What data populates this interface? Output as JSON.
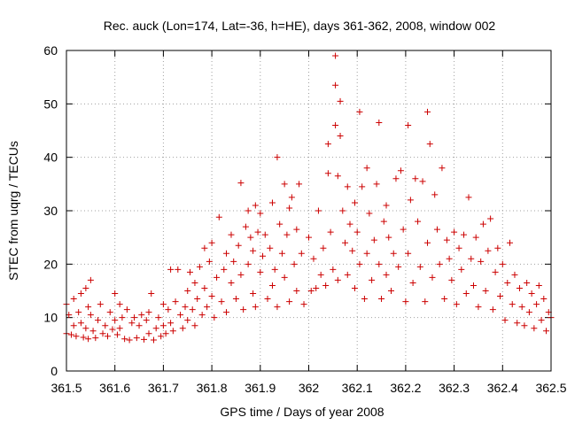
{
  "chart_data": {
    "type": "scatter",
    "title": "Rec. auck (Lon=174, Lat=-36, h=HE), days 361-362, 2008, window 002",
    "xlabel": "GPS time / Days of year 2008",
    "ylabel": "STEC from uqrg / TECUs",
    "xlim": [
      361.5,
      362.5
    ],
    "ylim": [
      0,
      60
    ],
    "xticks": [
      361.5,
      361.6,
      361.7,
      361.8,
      361.9,
      362,
      362.1,
      362.2,
      362.3,
      362.4,
      362.5
    ],
    "xtick_labels": [
      "361.5",
      "361.6",
      "361.7",
      "361.8",
      "361.9",
      "362",
      "362.1",
      "362.2",
      "362.3",
      "362.4",
      "362.5"
    ],
    "yticks": [
      0,
      10,
      20,
      30,
      40,
      50,
      60
    ],
    "ytick_labels": [
      "0",
      "10",
      "20",
      "30",
      "40",
      "50",
      "60"
    ],
    "grid": true,
    "marker": "+",
    "color": "#cc0000",
    "series": [
      {
        "name": "STEC",
        "points": [
          [
            361.5,
            12.5
          ],
          [
            361.5,
            7.0
          ],
          [
            361.505,
            10.5
          ],
          [
            361.51,
            6.8
          ],
          [
            361.515,
            13.5
          ],
          [
            361.515,
            8.5
          ],
          [
            361.52,
            6.5
          ],
          [
            361.525,
            11.0
          ],
          [
            361.53,
            14.5
          ],
          [
            361.53,
            9.0
          ],
          [
            361.535,
            6.3
          ],
          [
            361.54,
            15.5
          ],
          [
            361.54,
            8.0
          ],
          [
            361.545,
            12.0
          ],
          [
            361.545,
            6.0
          ],
          [
            361.55,
            17.0
          ],
          [
            361.55,
            10.5
          ],
          [
            361.555,
            7.5
          ],
          [
            361.56,
            6.2
          ],
          [
            361.565,
            9.5
          ],
          [
            361.57,
            12.5
          ],
          [
            361.575,
            7.0
          ],
          [
            361.58,
            8.5
          ],
          [
            361.585,
            6.5
          ],
          [
            361.59,
            11.0
          ],
          [
            361.595,
            7.8
          ],
          [
            361.6,
            14.5
          ],
          [
            361.6,
            9.5
          ],
          [
            361.605,
            6.8
          ],
          [
            361.61,
            12.5
          ],
          [
            361.61,
            8.0
          ],
          [
            361.615,
            10.0
          ],
          [
            361.62,
            6.0
          ],
          [
            361.625,
            11.5
          ],
          [
            361.63,
            5.8
          ],
          [
            361.635,
            9.0
          ],
          [
            361.64,
            10.0
          ],
          [
            361.645,
            6.2
          ],
          [
            361.65,
            8.5
          ],
          [
            361.655,
            10.5
          ],
          [
            361.66,
            5.9
          ],
          [
            361.665,
            9.5
          ],
          [
            361.67,
            11.0
          ],
          [
            361.67,
            7.0
          ],
          [
            361.675,
            14.5
          ],
          [
            361.68,
            5.8
          ],
          [
            361.685,
            8.0
          ],
          [
            361.69,
            10.0
          ],
          [
            361.695,
            6.5
          ],
          [
            361.7,
            12.5
          ],
          [
            361.7,
            8.5
          ],
          [
            361.705,
            7.0
          ],
          [
            361.71,
            11.5
          ],
          [
            361.715,
            19.0
          ],
          [
            361.715,
            9.0
          ],
          [
            361.72,
            7.5
          ],
          [
            361.725,
            13.0
          ],
          [
            361.73,
            19.0
          ],
          [
            361.735,
            10.5
          ],
          [
            361.74,
            8.0
          ],
          [
            361.745,
            12.0
          ],
          [
            361.75,
            15.0
          ],
          [
            361.75,
            9.5
          ],
          [
            361.755,
            18.5
          ],
          [
            361.76,
            11.5
          ],
          [
            361.765,
            16.5
          ],
          [
            361.765,
            8.5
          ],
          [
            361.77,
            13.5
          ],
          [
            361.775,
            19.5
          ],
          [
            361.78,
            10.5
          ],
          [
            361.785,
            23.0
          ],
          [
            361.785,
            15.5
          ],
          [
            361.79,
            12.0
          ],
          [
            361.795,
            20.5
          ],
          [
            361.8,
            24.0
          ],
          [
            361.8,
            14.0
          ],
          [
            361.805,
            10.0
          ],
          [
            361.81,
            17.5
          ],
          [
            361.815,
            28.8
          ],
          [
            361.82,
            13.0
          ],
          [
            361.825,
            19.0
          ],
          [
            361.83,
            22.0
          ],
          [
            361.83,
            11.0
          ],
          [
            361.84,
            25.5
          ],
          [
            361.84,
            16.5
          ],
          [
            361.845,
            20.5
          ],
          [
            361.85,
            13.5
          ],
          [
            361.855,
            23.5
          ],
          [
            361.86,
            35.2
          ],
          [
            361.86,
            18.0
          ],
          [
            361.865,
            11.5
          ],
          [
            361.87,
            27.0
          ],
          [
            361.875,
            30.0
          ],
          [
            361.875,
            20.0
          ],
          [
            361.88,
            25.0
          ],
          [
            361.885,
            14.5
          ],
          [
            361.885,
            22.5
          ],
          [
            361.89,
            31.0
          ],
          [
            361.89,
            12.0
          ],
          [
            361.895,
            26.0
          ],
          [
            361.9,
            29.5
          ],
          [
            361.9,
            18.5
          ],
          [
            361.905,
            21.5
          ],
          [
            361.91,
            25.5
          ],
          [
            361.915,
            13.5
          ],
          [
            361.92,
            23.0
          ],
          [
            361.925,
            31.5
          ],
          [
            361.925,
            16.0
          ],
          [
            361.93,
            19.0
          ],
          [
            361.935,
            40.0
          ],
          [
            361.935,
            12.0
          ],
          [
            361.94,
            27.5
          ],
          [
            361.945,
            22.0
          ],
          [
            361.95,
            35.0
          ],
          [
            361.95,
            17.5
          ],
          [
            361.955,
            25.5
          ],
          [
            361.96,
            30.5
          ],
          [
            361.96,
            13.0
          ],
          [
            361.965,
            32.5
          ],
          [
            361.97,
            20.0
          ],
          [
            361.975,
            26.5
          ],
          [
            361.975,
            15.0
          ],
          [
            361.98,
            35.0
          ],
          [
            361.985,
            22.0
          ],
          [
            361.99,
            12.5
          ],
          [
            362.0,
            25.0
          ],
          [
            362.005,
            15.0
          ],
          [
            362.01,
            21.0
          ],
          [
            362.015,
            15.5
          ],
          [
            362.02,
            30.0
          ],
          [
            362.025,
            18.0
          ],
          [
            362.03,
            23.0
          ],
          [
            362.035,
            16.0
          ],
          [
            362.04,
            42.5
          ],
          [
            362.04,
            37.0
          ],
          [
            362.045,
            26.0
          ],
          [
            362.05,
            19.0
          ],
          [
            362.055,
            59.0
          ],
          [
            362.055,
            53.5
          ],
          [
            362.055,
            46.0
          ],
          [
            362.06,
            36.5
          ],
          [
            362.06,
            17.0
          ],
          [
            362.065,
            50.5
          ],
          [
            362.065,
            44.0
          ],
          [
            362.07,
            30.0
          ],
          [
            362.075,
            24.0
          ],
          [
            362.08,
            34.5
          ],
          [
            362.08,
            18.0
          ],
          [
            362.085,
            27.5
          ],
          [
            362.09,
            22.5
          ],
          [
            362.095,
            31.5
          ],
          [
            362.095,
            15.5
          ],
          [
            362.1,
            26.0
          ],
          [
            362.105,
            48.5
          ],
          [
            362.105,
            20.0
          ],
          [
            362.11,
            34.5
          ],
          [
            362.115,
            13.5
          ],
          [
            362.12,
            38.0
          ],
          [
            362.12,
            22.0
          ],
          [
            362.125,
            29.5
          ],
          [
            362.13,
            17.0
          ],
          [
            362.135,
            24.5
          ],
          [
            362.14,
            35.0
          ],
          [
            362.145,
            46.5
          ],
          [
            362.145,
            20.0
          ],
          [
            362.15,
            13.5
          ],
          [
            362.155,
            28.0
          ],
          [
            362.16,
            31.0
          ],
          [
            362.16,
            18.0
          ],
          [
            362.165,
            25.0
          ],
          [
            362.17,
            15.0
          ],
          [
            362.175,
            22.0
          ],
          [
            362.18,
            36.0
          ],
          [
            362.185,
            19.5
          ],
          [
            362.19,
            37.5
          ],
          [
            362.195,
            26.5
          ],
          [
            362.2,
            13.0
          ],
          [
            362.205,
            46.0
          ],
          [
            362.205,
            22.0
          ],
          [
            362.21,
            32.0
          ],
          [
            362.215,
            16.5
          ],
          [
            362.22,
            36.0
          ],
          [
            362.225,
            28.0
          ],
          [
            362.23,
            19.5
          ],
          [
            362.235,
            35.5
          ],
          [
            362.24,
            13.0
          ],
          [
            362.245,
            48.5
          ],
          [
            362.245,
            24.0
          ],
          [
            362.25,
            42.5
          ],
          [
            362.255,
            17.5
          ],
          [
            362.26,
            33.0
          ],
          [
            362.265,
            26.5
          ],
          [
            362.27,
            20.0
          ],
          [
            362.275,
            38.0
          ],
          [
            362.28,
            13.5
          ],
          [
            362.285,
            24.5
          ],
          [
            362.29,
            21.0
          ],
          [
            362.295,
            17.0
          ],
          [
            362.3,
            26.0
          ],
          [
            362.305,
            12.5
          ],
          [
            362.31,
            23.0
          ],
          [
            362.315,
            19.0
          ],
          [
            362.32,
            25.5
          ],
          [
            362.325,
            14.5
          ],
          [
            362.33,
            32.5
          ],
          [
            362.335,
            21.0
          ],
          [
            362.34,
            16.0
          ],
          [
            362.345,
            25.0
          ],
          [
            362.35,
            12.0
          ],
          [
            362.355,
            20.5
          ],
          [
            362.36,
            27.5
          ],
          [
            362.365,
            15.0
          ],
          [
            362.37,
            22.5
          ],
          [
            362.375,
            28.5
          ],
          [
            362.38,
            11.5
          ],
          [
            362.385,
            18.5
          ],
          [
            362.39,
            23.0
          ],
          [
            362.395,
            14.0
          ],
          [
            362.4,
            20.0
          ],
          [
            362.405,
            9.5
          ],
          [
            362.41,
            16.5
          ],
          [
            362.415,
            24.0
          ],
          [
            362.42,
            12.5
          ],
          [
            362.425,
            18.0
          ],
          [
            362.43,
            9.0
          ],
          [
            362.435,
            15.5
          ],
          [
            362.44,
            12.0
          ],
          [
            362.445,
            8.5
          ],
          [
            362.45,
            16.5
          ],
          [
            362.455,
            11.0
          ],
          [
            362.46,
            14.5
          ],
          [
            362.465,
            8.0
          ],
          [
            362.47,
            12.5
          ],
          [
            362.475,
            16.0
          ],
          [
            362.48,
            9.5
          ],
          [
            362.485,
            13.5
          ],
          [
            362.49,
            7.5
          ],
          [
            362.495,
            11.0
          ],
          [
            362.5,
            10.0
          ]
        ]
      }
    ]
  }
}
